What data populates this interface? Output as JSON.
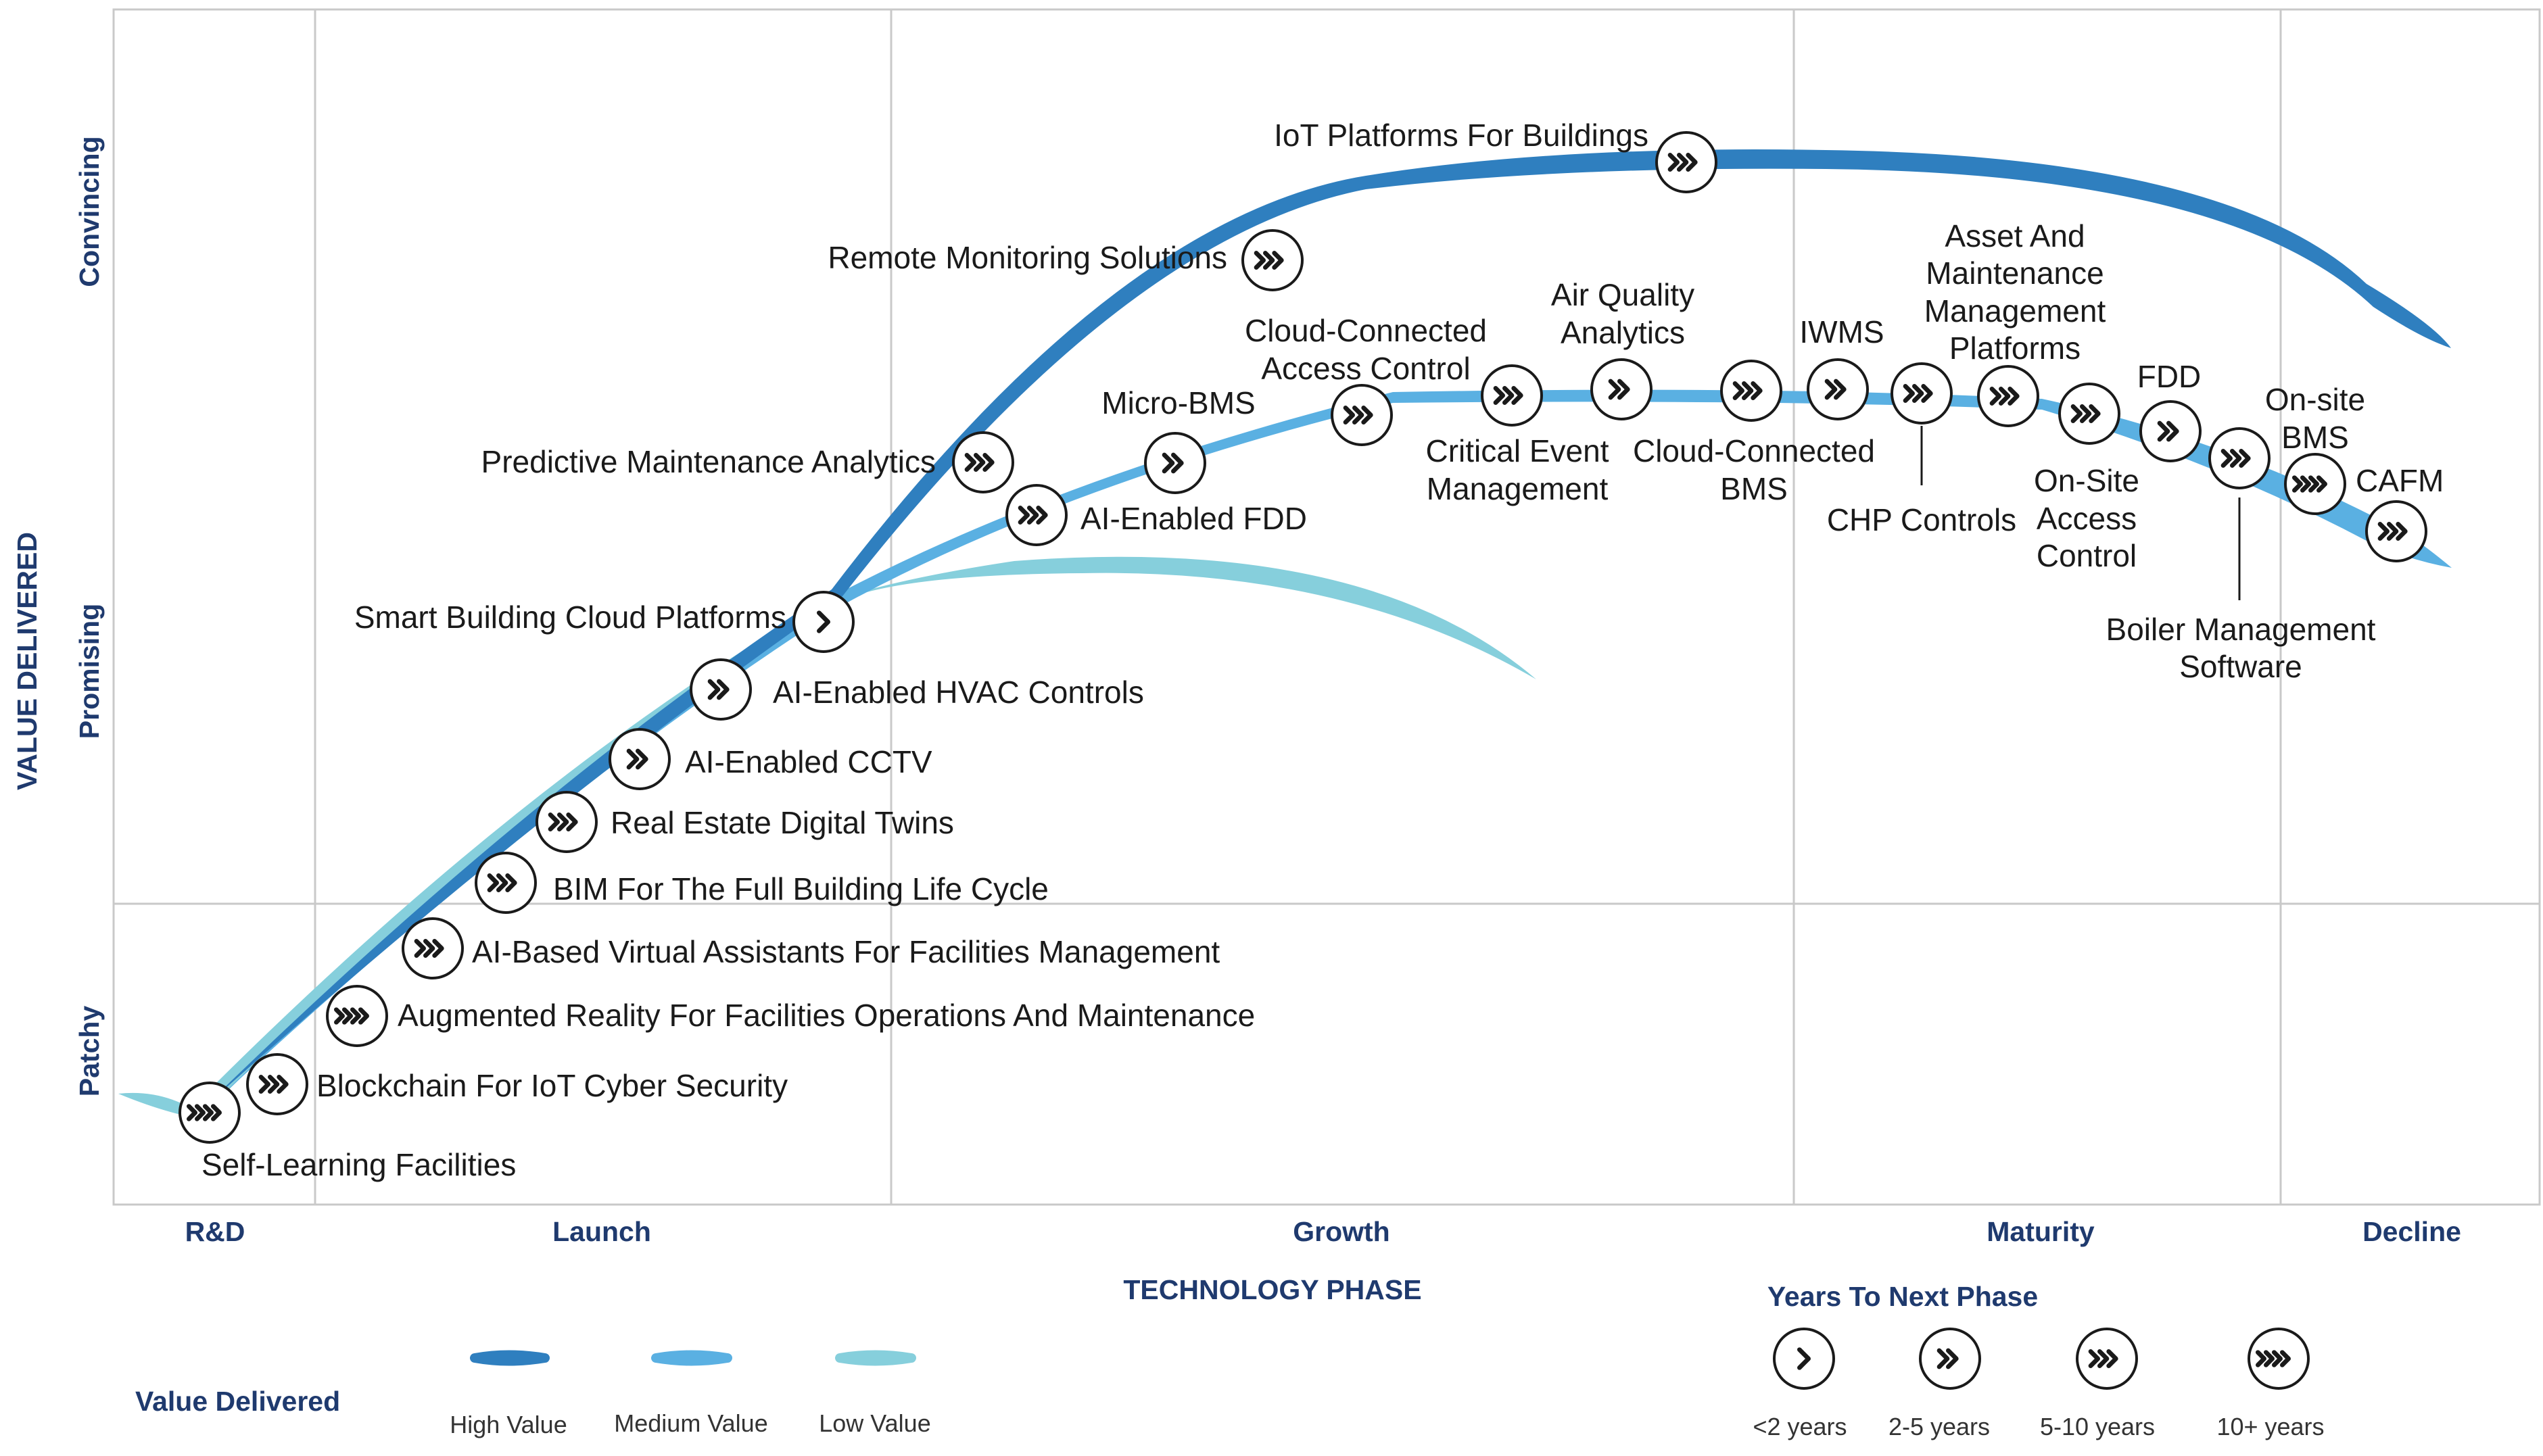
{
  "axes": {
    "x_title": "TECHNOLOGY PHASE",
    "y_title": "VALUE DELIVERED",
    "phases": [
      "R&D",
      "Launch",
      "Growth",
      "Maturity",
      "Decline"
    ],
    "value_levels": [
      "Patchy",
      "Promising",
      "Convincing"
    ]
  },
  "legend": {
    "value_title": "Value Delivered",
    "value_items": [
      {
        "label": "High Value",
        "color": "#2f7fbf"
      },
      {
        "label": "Medium Value",
        "color": "#5ab0e2"
      },
      {
        "label": "Low Value",
        "color": "#86cfdc"
      }
    ],
    "years_title": "Years To Next Phase",
    "years_items": [
      {
        "label": "<2 years",
        "chevrons": 1
      },
      {
        "label": "2-5 years",
        "chevrons": 2
      },
      {
        "label": "5-10 years",
        "chevrons": 3
      },
      {
        "label": "10+ years",
        "chevrons": 4
      }
    ]
  },
  "chart_data": {
    "type": "hype-curve",
    "curves": [
      {
        "name": "High Value",
        "color": "#2f7fbf"
      },
      {
        "name": "Medium Value",
        "color": "#5ab0e2"
      },
      {
        "name": "Low Value",
        "color": "#86cfdc"
      }
    ],
    "technologies": [
      {
        "label": "Self-Learning Facilities",
        "years": "10+ years"
      },
      {
        "label": "Blockchain For IoT Cyber Security",
        "years": "5-10 years"
      },
      {
        "label": "Augmented Reality For Facilities Operations And Maintenance",
        "years": "10+ years"
      },
      {
        "label": "AI-Based Virtual Assistants For Facilities Management",
        "years": "5-10 years"
      },
      {
        "label": "BIM For The Full Building Life Cycle",
        "years": "5-10 years"
      },
      {
        "label": "Real Estate Digital Twins",
        "years": "5-10 years"
      },
      {
        "label": "AI-Enabled CCTV",
        "years": "2-5 years"
      },
      {
        "label": "AI-Enabled HVAC Controls",
        "years": "2-5 years"
      },
      {
        "label": "Smart Building Cloud Platforms",
        "years": "<2 years"
      },
      {
        "label": "Predictive Maintenance Analytics",
        "years": "5-10 years"
      },
      {
        "label": "AI-Enabled FDD",
        "years": "5-10 years"
      },
      {
        "label": "Micro-BMS",
        "years": "2-5 years"
      },
      {
        "label": "Remote Monitoring Solutions",
        "years": "5-10 years"
      },
      {
        "label": "Cloud-Connected Access Control",
        "years": "5-10 years"
      },
      {
        "label": "Critical Event Management",
        "years": "5-10 years"
      },
      {
        "label": "Air Quality Analytics",
        "years": "2-5 years"
      },
      {
        "label": "IoT Platforms For Buildings",
        "years": "5-10 years"
      },
      {
        "label": "Cloud-Connected BMS",
        "years": "5-10 years"
      },
      {
        "label": "IWMS",
        "years": "2-5 years"
      },
      {
        "label": "CHP Controls",
        "years": "5-10 years"
      },
      {
        "label": "Asset And Maintenance Management Platforms",
        "years": "5-10 years"
      },
      {
        "label": "On-Site Access Control",
        "years": "5-10 years"
      },
      {
        "label": "FDD",
        "years": "2-5 years"
      },
      {
        "label": "Boiler Management Software",
        "years": "5-10 years"
      },
      {
        "label": "On-site BMS",
        "years": "10+ years"
      },
      {
        "label": "CAFM",
        "years": "5-10 years"
      }
    ]
  }
}
